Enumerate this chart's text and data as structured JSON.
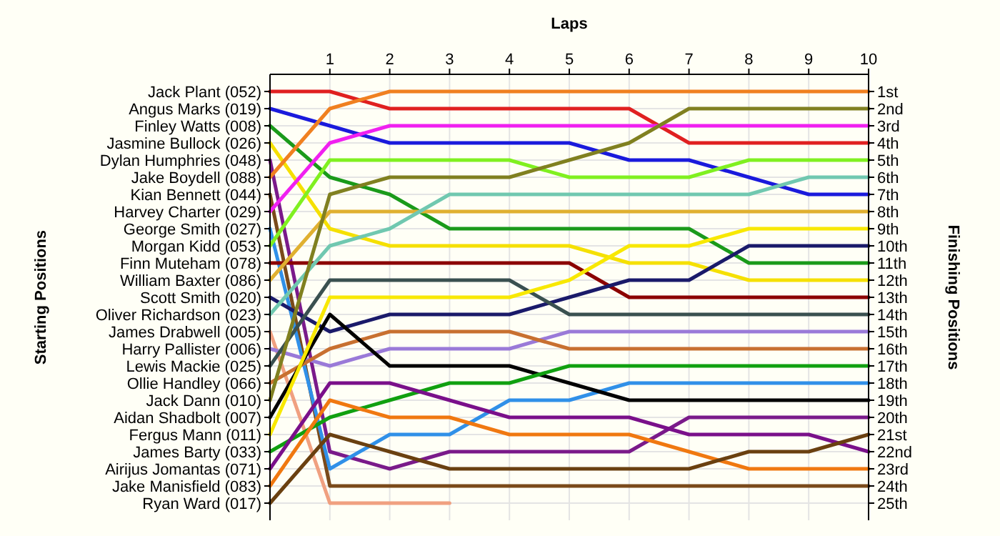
{
  "chart_data": {
    "type": "line",
    "xlabel": "Laps",
    "ylabel": "Finishing Positions",
    "x": [
      0,
      1,
      2,
      3,
      4,
      5,
      6,
      7,
      8,
      9,
      10
    ],
    "xlim": [
      0,
      10
    ],
    "xticks": [
      1,
      2,
      3,
      4,
      5,
      6,
      7,
      8,
      9,
      10
    ],
    "annotations": [
      "Starting Positions",
      "Jack Plant (052)",
      "Angus Marks (019)",
      "Finley Watts (008)",
      "Jasmine Bullock (026)",
      "Dylan Humphries (048)",
      "Jake Boydell (088)",
      "Kian Bennett (044)",
      "Harvey Charter (029)",
      "George Smith (027)",
      "Morgan Kidd (053)",
      "Finn Muteham (078)",
      "William Baxter (086)",
      "Scott Smith (020)",
      "Oliver Richardson (023)",
      "James Drabwell (005)",
      "Harry Pallister (006)",
      "Lewis Mackie (025)",
      "Ollie Handley (066)",
      "Jack Dann (010)",
      "Aidan Shadbolt (007)",
      "Fergus Mann (011)",
      "James Barty (033)",
      "Airijus Jomantas (071)",
      "Jake Manisfield (083)",
      "Ryan Ward (017)"
    ],
    "ylim": [
      26,
      0
    ],
    "yticks": [
      {
        "value": 1,
        "label": "1st"
      },
      {
        "value": 2,
        "label": "2nd"
      },
      {
        "value": 3,
        "label": "3rd"
      },
      {
        "value": 4,
        "label": "4th"
      },
      {
        "value": 5,
        "label": "5th"
      },
      {
        "value": 6,
        "label": "6th"
      },
      {
        "value": 7,
        "label": "7th"
      },
      {
        "value": 8,
        "label": "8th"
      },
      {
        "value": 9,
        "label": "9th"
      },
      {
        "value": 10,
        "label": "10th"
      },
      {
        "value": 11,
        "label": "11th"
      },
      {
        "value": 12,
        "label": "12th"
      },
      {
        "value": 13,
        "label": "13th"
      },
      {
        "value": 14,
        "label": "14th"
      },
      {
        "value": 15,
        "label": "15th"
      },
      {
        "value": 16,
        "label": "16th"
      },
      {
        "value": 17,
        "label": "17th"
      },
      {
        "value": 18,
        "label": "18th"
      },
      {
        "value": 19,
        "label": "19th"
      },
      {
        "value": 20,
        "label": "20th"
      },
      {
        "value": 21,
        "label": "21st"
      },
      {
        "value": 22,
        "label": "22nd"
      },
      {
        "value": 23,
        "label": "23rd"
      },
      {
        "value": 24,
        "label": "24th"
      },
      {
        "value": 25,
        "label": "25th"
      }
    ],
    "grid": true,
    "series": [
      {
        "color": "#e02020",
        "values": [
          1,
          1,
          2,
          2,
          2,
          2,
          2,
          4,
          4,
          4,
          4
        ]
      },
      {
        "color": "#1a1adc",
        "values": [
          2,
          3,
          4,
          4,
          4,
          4,
          5,
          5,
          6,
          7,
          7
        ]
      },
      {
        "color": "#1a9a1a",
        "values": [
          3,
          6,
          7,
          9,
          9,
          9,
          9,
          9,
          11,
          11,
          11
        ]
      },
      {
        "color": "#f5e000",
        "values": [
          4,
          9,
          10,
          10,
          10,
          10,
          11,
          11,
          12,
          12,
          12
        ]
      },
      {
        "color": "#7a1a8a",
        "values": [
          5,
          22,
          23,
          22,
          22,
          22,
          22,
          20,
          20,
          20,
          20
        ]
      },
      {
        "color": "#f08020",
        "values": [
          6,
          2,
          1,
          1,
          1,
          1,
          1,
          1,
          1,
          1,
          1
        ]
      },
      {
        "color": "#7a4a1a",
        "values": [
          7,
          24,
          24,
          24,
          24,
          24,
          24,
          24,
          24,
          24,
          24
        ]
      },
      {
        "color": "#f020f0",
        "values": [
          8,
          4,
          3,
          3,
          3,
          3,
          3,
          3,
          3,
          3,
          3
        ]
      },
      {
        "color": "#3090e8",
        "values": [
          9,
          23,
          21,
          21,
          19,
          19,
          18,
          18,
          18,
          18,
          18
        ]
      },
      {
        "color": "#80f020",
        "values": [
          10,
          5,
          5,
          5,
          5,
          6,
          6,
          6,
          5,
          5,
          5
        ]
      },
      {
        "color": "#8b0000",
        "values": [
          11,
          11,
          11,
          11,
          11,
          11,
          13,
          13,
          13,
          13,
          13
        ]
      },
      {
        "color": "#e0b030",
        "values": [
          12,
          8,
          8,
          8,
          8,
          8,
          8,
          8,
          8,
          8,
          8
        ]
      },
      {
        "color": "#1a1a6a",
        "values": [
          13,
          15,
          14,
          14,
          14,
          13,
          12,
          12,
          10,
          10,
          10
        ]
      },
      {
        "color": "#70c8b0",
        "values": [
          14,
          10,
          9,
          7,
          7,
          7,
          7,
          7,
          7,
          6,
          6
        ]
      },
      {
        "color": "#f0a080",
        "values": [
          15,
          25,
          25,
          25,
          null,
          null,
          null,
          null,
          null,
          null,
          null
        ]
      },
      {
        "color": "#9a7ad8",
        "values": [
          16,
          17,
          16,
          16,
          16,
          15,
          15,
          15,
          15,
          15,
          15
        ]
      },
      {
        "color": "#3a5050",
        "values": [
          17,
          12,
          12,
          12,
          12,
          14,
          14,
          14,
          14,
          14,
          14
        ]
      },
      {
        "color": "#c87030",
        "values": [
          18,
          16,
          15,
          15,
          15,
          16,
          16,
          16,
          16,
          16,
          16
        ]
      },
      {
        "color": "#808020",
        "values": [
          19,
          7,
          6,
          6,
          6,
          5,
          4,
          2,
          2,
          2,
          2
        ]
      },
      {
        "color": "#000000",
        "values": [
          20,
          14,
          17,
          17,
          17,
          18,
          19,
          19,
          19,
          19,
          19
        ]
      },
      {
        "color": "#f8e800",
        "values": [
          21,
          13,
          13,
          13,
          13,
          12,
          10,
          10,
          9,
          9,
          9
        ]
      },
      {
        "color": "#10a010",
        "values": [
          22,
          20,
          19,
          18,
          18,
          17,
          17,
          17,
          17,
          17,
          17
        ]
      },
      {
        "color": "#7a108a",
        "values": [
          23,
          18,
          18,
          19,
          20,
          20,
          20,
          21,
          21,
          21,
          22
        ]
      },
      {
        "color": "#f07810",
        "values": [
          24,
          19,
          20,
          20,
          21,
          21,
          21,
          22,
          23,
          23,
          23
        ]
      },
      {
        "color": "#6a4010",
        "values": [
          25,
          21,
          22,
          23,
          23,
          23,
          23,
          23,
          22,
          22,
          21
        ]
      }
    ]
  }
}
